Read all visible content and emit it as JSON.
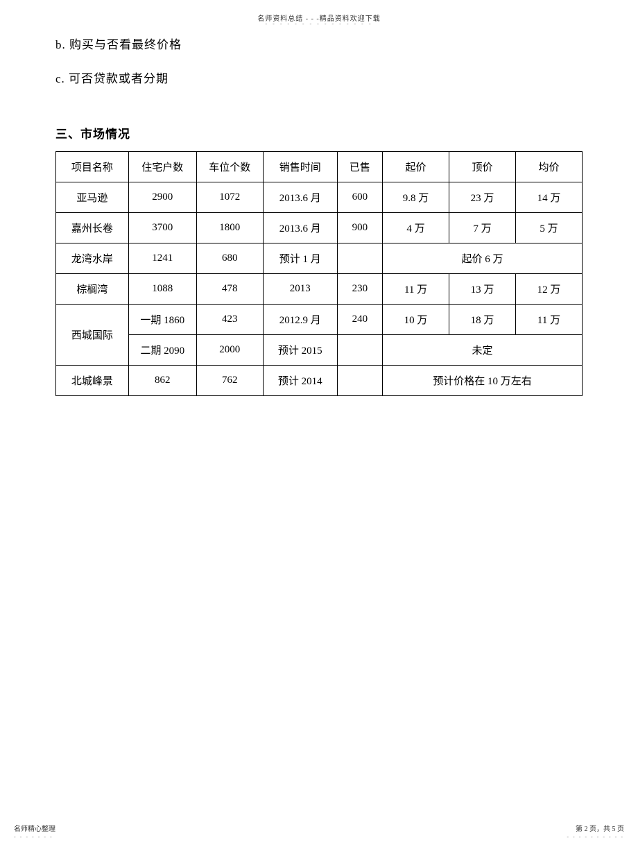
{
  "header": {
    "text": "名师资料总结 - - -精品资料欢迎下载"
  },
  "list": {
    "item_b": "b.  购买与否看最终价格",
    "item_c": "c.  可否贷款或者分期"
  },
  "section": {
    "title": "三、市场情况"
  },
  "table": {
    "columns": [
      "项目名称",
      "住宅户数",
      "车位个数",
      "销售时间",
      "已售",
      "起价",
      "顶价",
      "均价"
    ],
    "rows": [
      {
        "name": "亚马逊",
        "units": "2900",
        "spots": "1072",
        "time": "2013.6 月",
        "sold": "600",
        "start": "9.8  万",
        "top": "23 万",
        "avg": "14 万"
      },
      {
        "name": "嘉州长卷",
        "units": "3700",
        "spots": "1800",
        "time": "2013.6 月",
        "sold": "900",
        "start": "4 万",
        "top": "7 万",
        "avg": "5 万"
      },
      {
        "name": "龙湾水岸",
        "units": "1241",
        "spots": "680",
        "time": "预计 1 月",
        "sold": "",
        "merged": "起价 6 万"
      },
      {
        "name": "棕榈湾",
        "units": "1088",
        "spots": "478",
        "time": "2013",
        "sold": "230",
        "start": "11 万",
        "top": "13 万",
        "avg": "12 万"
      },
      {
        "name": "西城国际",
        "rowspan": 2,
        "units": "一期 1860",
        "spots": "423",
        "time": "2012.9 月",
        "sold": "240",
        "start": "10 万",
        "top": "18 万",
        "avg": "11 万"
      },
      {
        "units": "二期 2090",
        "spots": "2000",
        "time": "预计 2015",
        "sold": "",
        "merged": "未定"
      },
      {
        "name": "北城峰景",
        "units": "862",
        "spots": "762",
        "time": "预计 2014",
        "sold": "",
        "merged": "预计价格在  10 万左右"
      }
    ]
  },
  "footer": {
    "left": "名师精心整理",
    "right": "第 2 页，共 5 页"
  }
}
